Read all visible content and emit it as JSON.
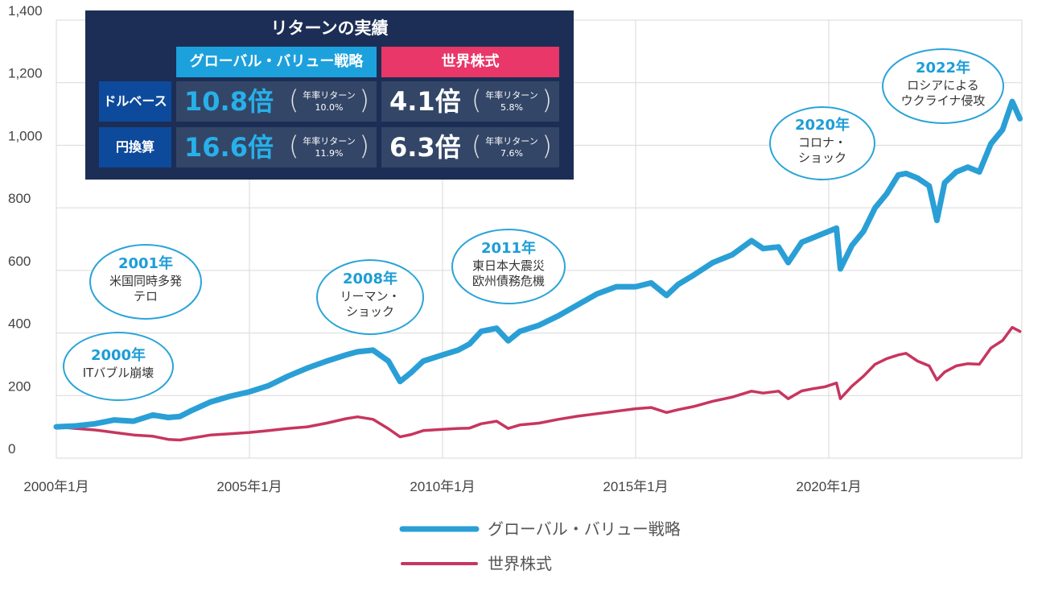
{
  "panel": {
    "title": "リターンの実績",
    "col_gv": "グローバル・バリュー戦略",
    "col_world": "世界株式",
    "rows": [
      {
        "label": "ドルベース",
        "gv_big": "10.8倍",
        "gv_label": "年率リターン",
        "gv_rate": "10.0%",
        "w_big": "4.1倍",
        "w_label": "年率リターン",
        "w_rate": "5.8%"
      },
      {
        "label": "円換算",
        "gv_big": "16.6倍",
        "gv_label": "年率リターン",
        "gv_rate": "11.9%",
        "w_big": "6.3倍",
        "w_label": "年率リターン",
        "w_rate": "7.6%"
      }
    ]
  },
  "colors": {
    "gv": "#2a9fd6",
    "world": "#c7365f",
    "grid": "#d9d9d9",
    "panel_bg": "#1c2e55"
  },
  "annotations": [
    {
      "year": "2000年",
      "lines": [
        "ITバブル崩壊"
      ]
    },
    {
      "year": "2001年",
      "lines": [
        "米国同時多発",
        "テロ"
      ]
    },
    {
      "year": "2008年",
      "lines": [
        "リーマン・",
        "ショック"
      ]
    },
    {
      "year": "2011年",
      "lines": [
        "東日本大震災",
        "欧州債務危機"
      ]
    },
    {
      "year": "2020年",
      "lines": [
        "コロナ・",
        "ショック"
      ]
    },
    {
      "year": "2022年",
      "lines": [
        "ロシアによる",
        "ウクライナ侵攻"
      ]
    }
  ],
  "chart_data": {
    "type": "line",
    "title": "",
    "xlabel": "",
    "ylabel": "",
    "ylim": [
      0,
      1400
    ],
    "yticks": [
      0,
      200,
      400,
      600,
      800,
      1000,
      1200,
      1400
    ],
    "ytick_labels": [
      "0",
      "200",
      "400",
      "600",
      "800",
      "1,000",
      "1,200",
      "1,400"
    ],
    "xlim": [
      2000.0,
      2025.0
    ],
    "xticks": [
      2000,
      2005,
      2010,
      2015,
      2020
    ],
    "xtick_labels": [
      "2000年1月",
      "2005年1月",
      "2010年1月",
      "2015年1月",
      "2020年1月"
    ],
    "grid": true,
    "legend": "bottom",
    "series": [
      {
        "name": "グローバル・バリュー戦略",
        "color": "#2a9fd6",
        "x": [
          2000.0,
          2000.5,
          2001.0,
          2001.5,
          2002.0,
          2002.5,
          2002.9,
          2003.2,
          2003.5,
          2004.0,
          2004.5,
          2005.0,
          2005.5,
          2006.0,
          2006.5,
          2007.0,
          2007.5,
          2007.8,
          2008.2,
          2008.6,
          2008.9,
          2009.2,
          2009.5,
          2010.0,
          2010.4,
          2010.7,
          2011.0,
          2011.4,
          2011.7,
          2012.0,
          2012.5,
          2013.0,
          2013.5,
          2014.0,
          2014.5,
          2015.0,
          2015.4,
          2015.8,
          2016.1,
          2016.5,
          2017.0,
          2017.5,
          2018.0,
          2018.3,
          2018.7,
          2018.95,
          2019.3,
          2019.6,
          2019.9,
          2020.2,
          2020.3,
          2020.6,
          2020.9,
          2021.2,
          2021.5,
          2021.8,
          2022.0,
          2022.3,
          2022.6,
          2022.8,
          2023.0,
          2023.3,
          2023.6,
          2023.9,
          2024.2,
          2024.5,
          2024.75,
          2024.95
        ],
        "values": [
          100,
          103,
          110,
          122,
          118,
          138,
          130,
          133,
          152,
          180,
          198,
          212,
          232,
          262,
          288,
          310,
          330,
          340,
          345,
          310,
          245,
          275,
          310,
          330,
          345,
          365,
          405,
          415,
          375,
          405,
          425,
          455,
          490,
          525,
          548,
          548,
          560,
          520,
          555,
          585,
          625,
          650,
          695,
          670,
          675,
          625,
          690,
          705,
          720,
          735,
          605,
          680,
          725,
          800,
          845,
          905,
          910,
          895,
          870,
          760,
          880,
          915,
          930,
          915,
          1005,
          1050,
          1140,
          1085
        ]
      },
      {
        "name": "世界株式",
        "color": "#c7365f",
        "x": [
          2000.0,
          2000.5,
          2001.0,
          2001.5,
          2002.0,
          2002.5,
          2002.9,
          2003.2,
          2003.5,
          2004.0,
          2004.5,
          2005.0,
          2005.5,
          2006.0,
          2006.5,
          2007.0,
          2007.5,
          2007.8,
          2008.2,
          2008.6,
          2008.9,
          2009.2,
          2009.5,
          2010.0,
          2010.4,
          2010.7,
          2011.0,
          2011.4,
          2011.7,
          2012.0,
          2012.5,
          2013.0,
          2013.5,
          2014.0,
          2014.5,
          2015.0,
          2015.4,
          2015.8,
          2016.1,
          2016.5,
          2017.0,
          2017.5,
          2018.0,
          2018.3,
          2018.7,
          2018.95,
          2019.3,
          2019.6,
          2019.9,
          2020.2,
          2020.3,
          2020.6,
          2020.9,
          2021.2,
          2021.5,
          2021.8,
          2022.0,
          2022.3,
          2022.6,
          2022.8,
          2023.0,
          2023.3,
          2023.6,
          2023.9,
          2024.2,
          2024.5,
          2024.75,
          2024.95
        ],
        "values": [
          100,
          95,
          90,
          82,
          74,
          70,
          60,
          58,
          64,
          74,
          78,
          82,
          88,
          95,
          100,
          112,
          126,
          132,
          124,
          94,
          68,
          76,
          88,
          92,
          95,
          96,
          110,
          118,
          95,
          106,
          112,
          124,
          134,
          142,
          150,
          158,
          162,
          146,
          155,
          165,
          182,
          195,
          214,
          208,
          214,
          190,
          215,
          222,
          228,
          240,
          190,
          230,
          262,
          300,
          318,
          330,
          335,
          310,
          295,
          250,
          275,
          295,
          302,
          300,
          352,
          376,
          418,
          405
        ]
      }
    ]
  }
}
